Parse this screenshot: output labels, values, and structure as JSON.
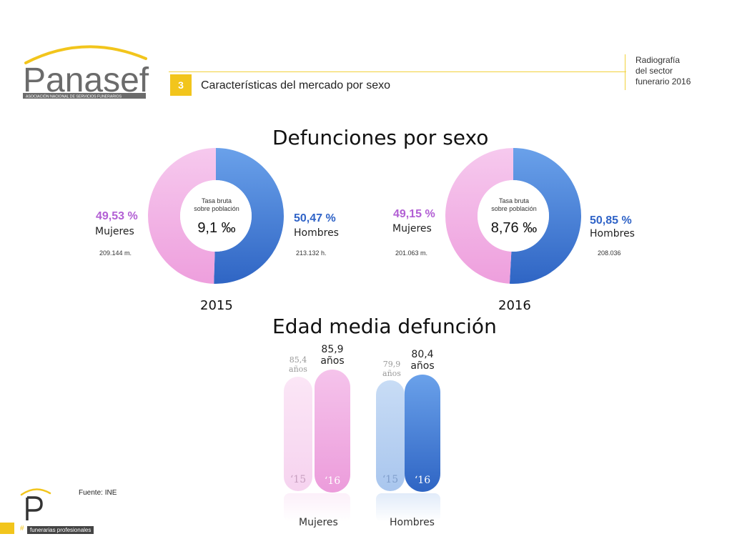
{
  "header": {
    "logo_text": "Panasef",
    "logo_subtitle": "ASOCIACIÓN NACIONAL DE SERVICIOS FUNERARIOS",
    "section_number": "3",
    "section_title": "Características del mercado por sexo",
    "report_title_lines": [
      "Radiografía",
      "del sector",
      "funerario 2016"
    ]
  },
  "colors": {
    "accent_yellow": "#f2c51c",
    "mujeres_pink": "#f0aee2",
    "hombres_blue": "#3c78d8",
    "pct_pink_text": "#b25fd4",
    "pct_blue_text": "#2f63c7"
  },
  "deaths_section": {
    "title": "Defunciones por sexo",
    "center_label_line1": "Tasa bruta",
    "center_label_line2": "sobre población"
  },
  "chart_data": [
    {
      "type": "pie",
      "title": "2015",
      "categories": [
        "Mujeres",
        "Hombres"
      ],
      "values": [
        49.53,
        50.47
      ],
      "value_labels": [
        "49,53 %",
        "50,47 %"
      ],
      "counts": [
        "209.144 m.",
        "213.132 h."
      ],
      "center_value": "9,1 ‰",
      "center_label": "Tasa bruta sobre población"
    },
    {
      "type": "pie",
      "title": "2016",
      "categories": [
        "Mujeres",
        "Hombres"
      ],
      "values": [
        49.15,
        50.85
      ],
      "value_labels": [
        "49,15 %",
        "50,85 %"
      ],
      "counts": [
        "201.063 m.",
        "208.036"
      ],
      "center_value": "8,76 ‰",
      "center_label": "Tasa bruta sobre población"
    },
    {
      "type": "bar",
      "title": "Edad media defunción",
      "categories": [
        "Mujeres",
        "Hombres"
      ],
      "series": [
        {
          "name": "‘15",
          "values": [
            85.4,
            79.9
          ],
          "value_labels": [
            "85,4",
            "79,9"
          ]
        },
        {
          "name": "‘16",
          "values": [
            85.9,
            80.4
          ],
          "value_labels": [
            "85,9",
            "80,4"
          ]
        }
      ],
      "unit": "años"
    }
  ],
  "age_section": {
    "title": "Edad media defunción",
    "unit": "años",
    "groups": [
      {
        "label": "Mujeres",
        "y15": "85,4",
        "y16": "85,9",
        "year15": "‘15",
        "year16": "‘16"
      },
      {
        "label": "Hombres",
        "y15": "79,9",
        "y16": "80,4",
        "year15": "‘15",
        "year16": "‘16"
      }
    ]
  },
  "footer": {
    "source": "Fuente: INE",
    "tagline": "funerarias profesionales",
    "hash": "#"
  }
}
